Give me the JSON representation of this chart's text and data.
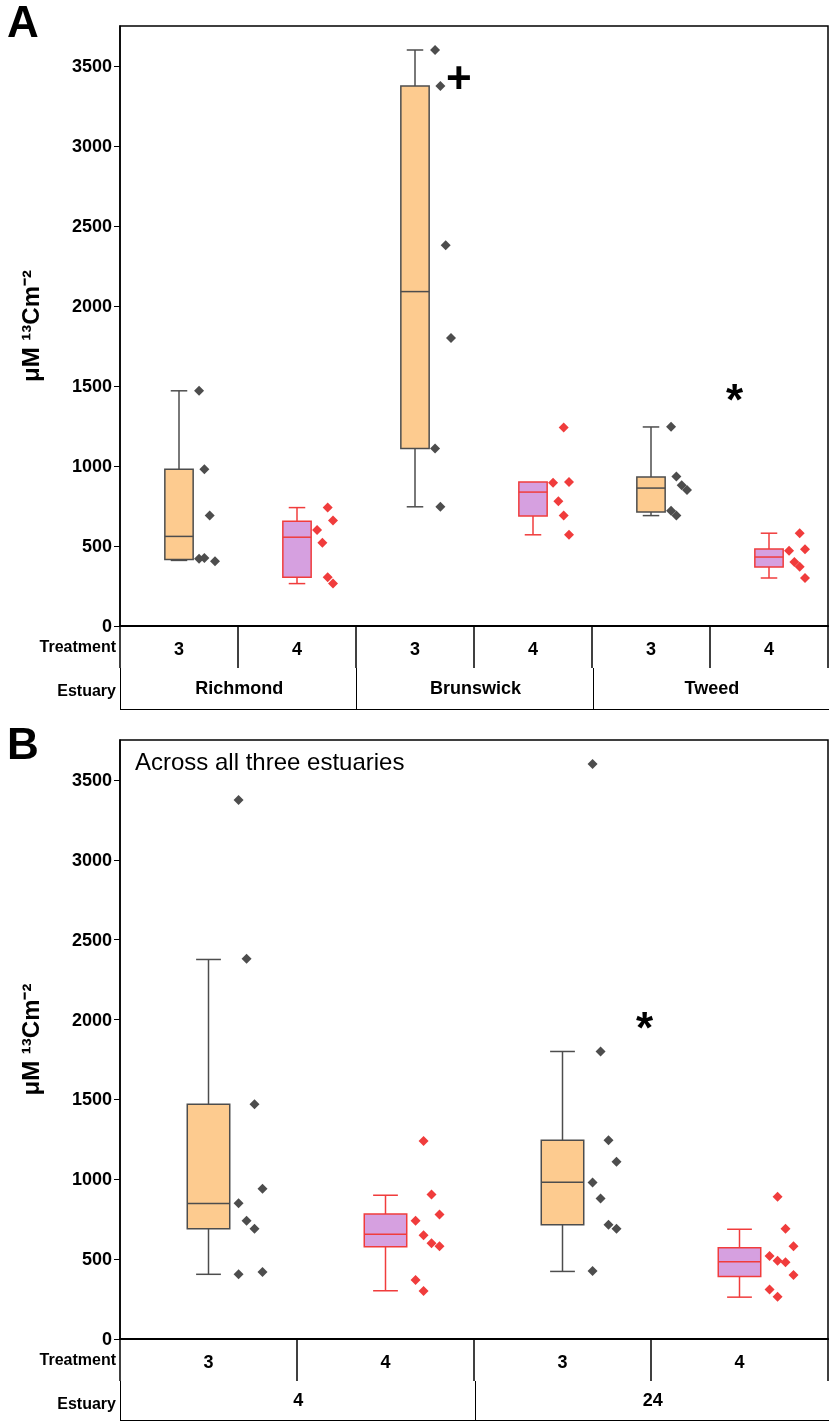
{
  "chart_data": [
    {
      "type": "box",
      "title": "A",
      "ylabel": "μM ¹³Cm⁻²",
      "xlabel": "Treatment",
      "categories": [
        "3",
        "4",
        "3",
        "4",
        "3",
        "4"
      ],
      "ylim": [
        0,
        3750
      ],
      "yticks": [
        0,
        500,
        1000,
        1500,
        2000,
        2500,
        3000,
        3500
      ],
      "marker": "diamond",
      "annotations": [
        "Estuary",
        "Richmond",
        "Brunswick",
        "Tweed",
        "+",
        "*"
      ],
      "series": [
        {
          "color": "#fdcb8f",
          "boxes": [
            {
              "low": 410,
              "q1": 415,
              "median": 560,
              "q3": 980,
              "high": 1470
            },
            null,
            {
              "low": 745,
              "q1": 1110,
              "median": 2090,
              "q3": 3375,
              "high": 3600
            },
            null,
            {
              "low": 690,
              "q1": 712,
              "median": 862,
              "q3": 931,
              "high": 1244
            },
            null
          ]
        },
        {
          "color": "#d6a0e0",
          "boxes": [
            null,
            {
              "low": 265,
              "q1": 305,
              "median": 555,
              "q3": 655,
              "high": 740
            },
            null,
            {
              "low": 570,
              "q1": 687,
              "median": 837,
              "q3": 900,
              "high": 900
            },
            null,
            {
              "low": 300,
              "q1": 368,
              "median": 431,
              "q3": 481,
              "high": 580
            }
          ]
        },
        {
          "type": "scatter",
          "color": "#4d4d4d",
          "values": [
            1470,
            null,
            3600,
            null,
            1245,
            null
          ]
        },
        {
          "type": "scatter",
          "color": "#4d4d4d",
          "values": [
            980,
            null,
            3375,
            null,
            935,
            null
          ]
        },
        {
          "type": "scatter",
          "color": "#4d4d4d",
          "values": [
            690,
            null,
            2380,
            null,
            880,
            null
          ]
        },
        {
          "type": "scatter",
          "color": "#4d4d4d",
          "values": [
            405,
            null,
            1800,
            null,
            850,
            null
          ]
        },
        {
          "type": "scatter",
          "color": "#4d4d4d",
          "values": [
            420,
            null,
            1110,
            null,
            720,
            null
          ]
        },
        {
          "type": "scatter",
          "color": "#4d4d4d",
          "values": [
            425,
            null,
            745,
            null,
            690,
            null
          ]
        },
        {
          "type": "scatter",
          "color": "#f03c3c",
          "values": [
            null,
            740,
            null,
            1240,
            null,
            580
          ]
        },
        {
          "type": "scatter",
          "color": "#f03c3c",
          "values": [
            null,
            660,
            null,
            900,
            null,
            480
          ]
        },
        {
          "type": "scatter",
          "color": "#f03c3c",
          "values": [
            null,
            600,
            null,
            895,
            null,
            470
          ]
        },
        {
          "type": "scatter",
          "color": "#f03c3c",
          "values": [
            null,
            520,
            null,
            780,
            null,
            400
          ]
        },
        {
          "type": "scatter",
          "color": "#f03c3c",
          "values": [
            null,
            305,
            null,
            690,
            null,
            370
          ]
        },
        {
          "type": "scatter",
          "color": "#f03c3c",
          "values": [
            null,
            265,
            null,
            570,
            null,
            300
          ]
        }
      ]
    },
    {
      "type": "box",
      "title": "B",
      "subtitle": "Across all three estuaries",
      "ylabel": "μM ¹³Cm⁻²",
      "xlabel": "Treatment",
      "categories": [
        "3",
        "4",
        "3",
        "4"
      ],
      "ylim": [
        0,
        3750
      ],
      "yticks": [
        0,
        500,
        1000,
        1500,
        2000,
        2500,
        3000,
        3500
      ],
      "marker": "diamond",
      "annotations": [
        "Estuary",
        "4",
        "24",
        "*"
      ],
      "series": [
        {
          "color": "#fdcb8f",
          "boxes": [
            {
              "low": 405,
              "q1": 690,
              "median": 848,
              "q3": 1470,
              "high": 2376
            },
            null,
            {
              "low": 423,
              "q1": 716,
              "median": 981,
              "q3": 1245,
              "high": 1800
            },
            null
          ]
        },
        {
          "color": "#d6a0e0",
          "boxes": [
            null,
            {
              "low": 302,
              "q1": 578,
              "median": 656,
              "q3": 782,
              "high": 900
            },
            null,
            {
              "low": 262,
              "q1": 391,
              "median": 483,
              "q3": 572,
              "high": 687
            }
          ]
        },
        {
          "type": "scatter",
          "color": "#4d4d4d",
          "values": [
            3375,
            null,
            3600,
            null
          ]
        },
        {
          "type": "scatter",
          "color": "#4d4d4d",
          "values": [
            2380,
            null,
            1800,
            null
          ]
        },
        {
          "type": "scatter",
          "color": "#4d4d4d",
          "values": [
            1470,
            null,
            1245,
            null
          ]
        },
        {
          "type": "scatter",
          "color": "#4d4d4d",
          "values": [
            940,
            null,
            1110,
            null
          ]
        },
        {
          "type": "scatter",
          "color": "#4d4d4d",
          "values": [
            850,
            null,
            980,
            null
          ]
        },
        {
          "type": "scatter",
          "color": "#4d4d4d",
          "values": [
            740,
            null,
            880,
            null
          ]
        },
        {
          "type": "scatter",
          "color": "#4d4d4d",
          "values": [
            690,
            null,
            715,
            null
          ]
        },
        {
          "type": "scatter",
          "color": "#4d4d4d",
          "values": [
            420,
            null,
            690,
            null
          ]
        },
        {
          "type": "scatter",
          "color": "#4d4d4d",
          "values": [
            405,
            null,
            425,
            null
          ]
        },
        {
          "type": "scatter",
          "color": "#f03c3c",
          "values": [
            null,
            1240,
            null,
            890
          ]
        },
        {
          "type": "scatter",
          "color": "#f03c3c",
          "values": [
            null,
            905,
            null,
            690
          ]
        },
        {
          "type": "scatter",
          "color": "#f03c3c",
          "values": [
            null,
            780,
            null,
            580
          ]
        },
        {
          "type": "scatter",
          "color": "#f03c3c",
          "values": [
            null,
            740,
            null,
            520
          ]
        },
        {
          "type": "scatter",
          "color": "#f03c3c",
          "values": [
            null,
            650,
            null,
            490
          ]
        },
        {
          "type": "scatter",
          "color": "#f03c3c",
          "values": [
            null,
            600,
            null,
            480
          ]
        },
        {
          "type": "scatter",
          "color": "#f03c3c",
          "values": [
            null,
            580,
            null,
            400
          ]
        },
        {
          "type": "scatter",
          "color": "#f03c3c",
          "values": [
            null,
            370,
            null,
            310
          ]
        },
        {
          "type": "scatter",
          "color": "#f03c3c",
          "values": [
            null,
            300,
            null,
            265
          ]
        }
      ]
    }
  ]
}
